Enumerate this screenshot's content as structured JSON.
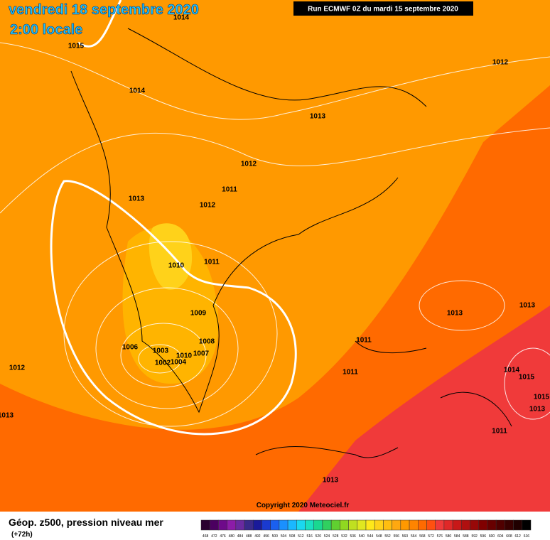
{
  "header": {
    "date": "vendredi 18 septembre 2020",
    "time": "2:00 locale",
    "run": "Run ECMWF 0Z du mardi 15 septembre 2020"
  },
  "pressure_labels": [
    "1014",
    "1015",
    "1014",
    "1012",
    "1013",
    "1012",
    "1011",
    "1013",
    "1012",
    "1010",
    "1011",
    "1009",
    "1013",
    "1013",
    "1008",
    "1006",
    "1003",
    "1007",
    "1010",
    "1002",
    "1004",
    "1011",
    "1011",
    "1012",
    "1014",
    "1015",
    "1015",
    "1013",
    "1013",
    "1011",
    "1013"
  ],
  "copyright": "Copyright 2020 Meteociel.fr",
  "footer": {
    "title": "Géop. z500, pression niveau mer",
    "lead": "(+72h)"
  },
  "legend": {
    "labels": [
      468,
      472,
      476,
      480,
      484,
      488,
      492,
      496,
      500,
      504,
      508,
      512,
      516,
      520,
      524,
      528,
      532,
      536,
      540,
      544,
      548,
      552,
      556,
      560,
      564,
      568,
      572,
      576,
      580,
      584,
      588,
      592,
      596,
      600,
      604,
      608,
      612,
      616
    ],
    "colors": [
      "#2a0030",
      "#4b0060",
      "#6e0a8a",
      "#8c1ca8",
      "#6a2aa0",
      "#3a2a8a",
      "#1a1a9a",
      "#1a3ad0",
      "#1a60f0",
      "#1a90ff",
      "#1ab8ff",
      "#1ad8f0",
      "#1ae0c0",
      "#1ad890",
      "#30d060",
      "#60d030",
      "#90d820",
      "#c0e020",
      "#e0e820",
      "#ffe81a",
      "#ffd21a",
      "#ffbe10",
      "#ffa810",
      "#ff9900",
      "#ff8400",
      "#ff6a00",
      "#ff5010",
      "#f03a3a",
      "#e02828",
      "#c81818",
      "#b01010",
      "#980808",
      "#800000",
      "#680000",
      "#500000",
      "#380000",
      "#200000",
      "#000000"
    ]
  }
}
